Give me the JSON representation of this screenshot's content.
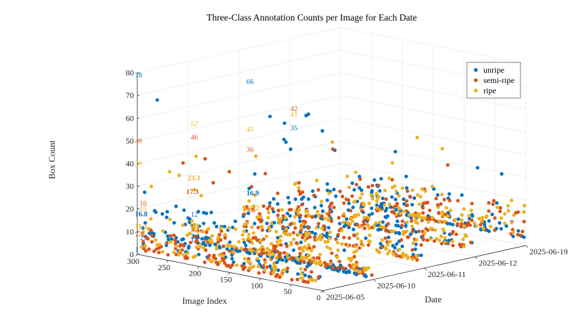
{
  "colors": {
    "unripe": "#0072BD",
    "semi_ripe": "#D95319",
    "ripe": "#EDB120",
    "axis": "#262626",
    "grid": "#ebebeb"
  },
  "chart_data": {
    "type": "scatter",
    "projection": "3d",
    "title": "Three-Class Annotation Counts per Image for Each Date",
    "xlabel": "Image Index",
    "ylabel": "Date",
    "zlabel": "Box Count",
    "xlim": [
      0,
      300
    ],
    "zlim": [
      0,
      80
    ],
    "x_ticks": [
      "0",
      "50",
      "100",
      "150",
      "200",
      "250",
      "300"
    ],
    "date_ticks": [
      "2025-06-05",
      "2025-06-10",
      "2025-06-11",
      "2025-06-12",
      "2025-06-19"
    ],
    "z_ticks": [
      "0",
      "10",
      "20",
      "30",
      "40",
      "50",
      "60",
      "70",
      "80"
    ],
    "grid": true,
    "legend": {
      "position": "top-right",
      "entries": [
        "unripe",
        "semi-ripe",
        "ripe"
      ]
    },
    "series": [
      {
        "name": "unripe",
        "color": "#0072BD"
      },
      {
        "name": "semi-ripe",
        "color": "#D95319"
      },
      {
        "name": "ripe",
        "color": "#EDB120"
      }
    ],
    "annotations": [
      {
        "date": "2025-06-05",
        "class": "unripe",
        "max": "78",
        "mean": "16.8",
        "min": "1"
      },
      {
        "date": "2025-06-05",
        "class": "semi-ripe",
        "max": "49",
        "mean": "7.9",
        "min": ""
      },
      {
        "date": "2025-06-05",
        "class": "ripe",
        "max": "39",
        "mean": "11.3",
        "min": ""
      },
      {
        "date": "2025-06-10",
        "class": "unripe",
        "max": "12",
        "mean": "2.4",
        "min": "1"
      },
      {
        "date": "2025-06-10",
        "class": "semi-ripe",
        "max": "46",
        "mean": "5.4",
        "min": ""
      },
      {
        "date": "2025-06-10",
        "class": "ripe",
        "max": "52",
        "mean": "6.8",
        "min": ""
      },
      {
        "date": "2025-06-11",
        "class": "unripe",
        "max": "66",
        "mean": "16.9",
        "min": ""
      },
      {
        "date": "2025-06-11",
        "class": "semi-ripe",
        "max": "36",
        "mean": "9.5",
        "min": ""
      },
      {
        "date": "2025-06-11",
        "class": "ripe",
        "max": "45",
        "mean": "10.2",
        "min": ""
      }
    ],
    "extra_labels": [
      {
        "text": "16",
        "class": "semi-ripe"
      },
      {
        "text": "15",
        "class": "ripe"
      },
      {
        "text": "23.3",
        "class": "ripe"
      },
      {
        "text": "17.3",
        "class": "semi-ripe"
      },
      {
        "text": "1",
        "class": "unripe"
      },
      {
        "text": "25",
        "class": "unripe"
      },
      {
        "text": "35",
        "class": "unripe"
      },
      {
        "text": "41",
        "class": "ripe"
      },
      {
        "text": "42",
        "class": "semi-ripe"
      }
    ]
  }
}
